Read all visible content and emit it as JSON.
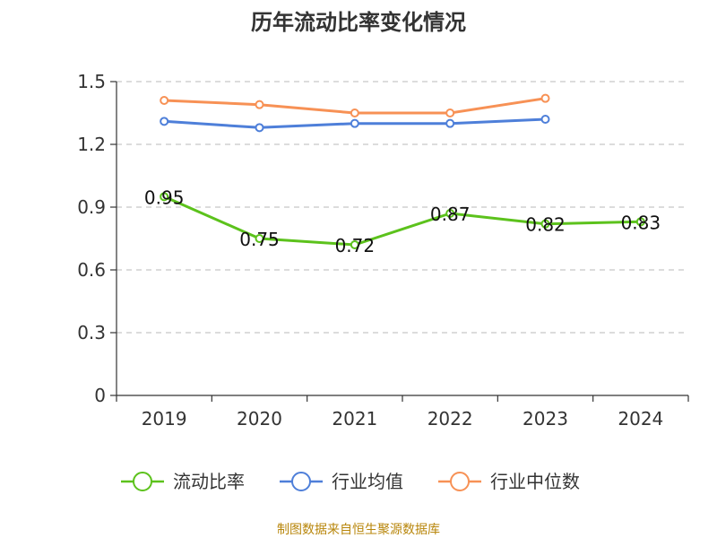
{
  "chart_data": {
    "type": "line",
    "title": "历年流动比率变化情况",
    "categories": [
      "2019",
      "2020",
      "2021",
      "2022",
      "2023",
      "2024"
    ],
    "ylim": [
      0,
      1.5
    ],
    "yticks": [
      "0",
      "0.3",
      "0.6",
      "0.9",
      "1.2",
      "1.5"
    ],
    "grid": true,
    "legend_position": "bottom",
    "series": [
      {
        "name": "流动比率",
        "color": "#5cc21c",
        "values": [
          0.95,
          0.75,
          0.72,
          0.87,
          0.82,
          0.83
        ],
        "labels": [
          "0.95",
          "0.75",
          "0.72",
          "0.87",
          "0.82",
          "0.83"
        ]
      },
      {
        "name": "行业均值",
        "color": "#4e7fd9",
        "values": [
          1.31,
          1.28,
          1.3,
          1.3,
          1.32,
          null
        ]
      },
      {
        "name": "行业中位数",
        "color": "#f79155",
        "values": [
          1.41,
          1.39,
          1.35,
          1.35,
          1.42,
          null
        ]
      }
    ]
  },
  "source": "制图数据来自恒生聚源数据库"
}
